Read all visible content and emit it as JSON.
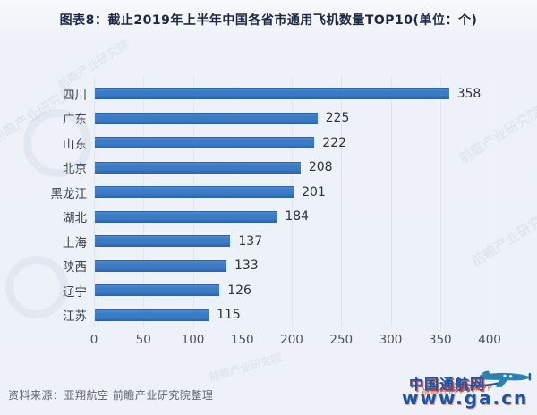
{
  "title": "图表8：截止2019年上半年中国各省市通用飞机数量TOP10(单位：个)",
  "chart_data": {
    "type": "bar",
    "orientation": "horizontal",
    "title": "图表8：截止2019年上半年中国各省市通用飞机数量TOP10(单位：个)",
    "categories": [
      "四川",
      "广东",
      "山东",
      "北京",
      "黑龙江",
      "湖北",
      "上海",
      "陕西",
      "辽宁",
      "江苏"
    ],
    "values": [
      358,
      225,
      222,
      208,
      201,
      184,
      137,
      133,
      126,
      115
    ],
    "xlabel": "",
    "ylabel": "",
    "xlim": [
      0,
      400
    ],
    "x_ticks": [
      0,
      50,
      100,
      150,
      200,
      250,
      300,
      350,
      400
    ],
    "grid": true,
    "legend": false,
    "value_labels": true,
    "bar_color": "#3b7ac4"
  },
  "source_note": "资料来源：亚翔航空  前瞻产业研究院整理",
  "watermark": {
    "text": "前瞻产业研究院"
  },
  "logo": {
    "name": "中国通航网",
    "url": "www.ga.cn",
    "overlay": "前瞻经济学人APP",
    "blue": "#1458ac",
    "red": "#cd3a28",
    "plane_color": "#2b81b2"
  }
}
